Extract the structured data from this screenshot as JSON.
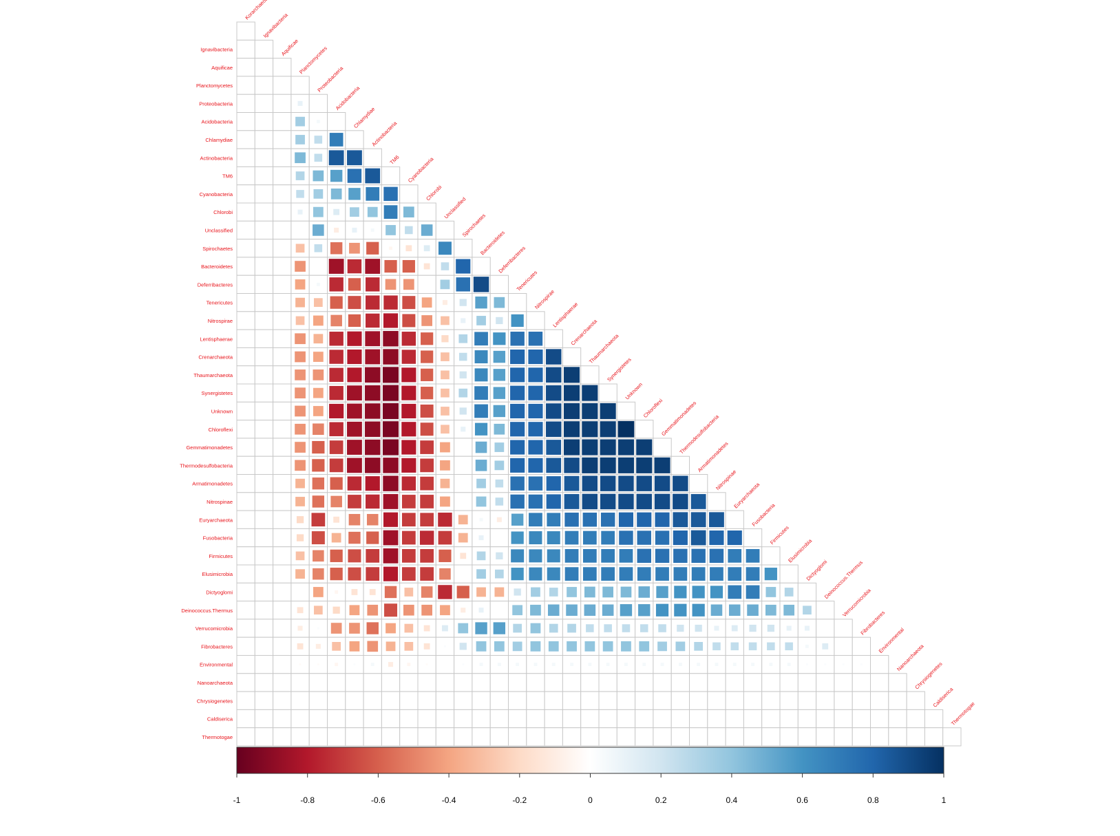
{
  "chart_data": {
    "type": "heatmap",
    "subtype": "lower-triangular correlation matrix (square glyphs, size and color scale with |r|)",
    "variables": [
      "Korarchaeota",
      "Ignavibacteria",
      "Aquificae",
      "Planctomycetes",
      "Proteobacteria",
      "Acidobacteria",
      "Chlamydiae",
      "Actinobacteria",
      "TM6",
      "Cyanobacteria",
      "Chlorobi",
      "Unclassified",
      "Spirochaetes",
      "Bacteroidetes",
      "Deferribacteres",
      "Tenericutes",
      "Nitrospirae",
      "Lentisphaerae",
      "Crenarchaeota",
      "Thaumarchaeota",
      "Synergistetes",
      "Unknown",
      "Chloroflexi",
      "Gemmatimonadetes",
      "Thermodesulfobacteria",
      "Armatimonadetes",
      "Nitrospinae",
      "Euryarchaeota",
      "Fusobacteria",
      "Firmicutes",
      "Elusimicrobia",
      "Dictyoglomi",
      "Deinococcus.Thermus",
      "Verrucomicrobia",
      "Fibrobacteres",
      "Environmental",
      "Nanoarchaeota",
      "Chrysiogenetes",
      "Caldiserica",
      "Thermotogae"
    ],
    "row_labels": [
      "Ignavibacteria",
      "Aquificae",
      "Planctomycetes",
      "Proteobacteria",
      "Acidobacteria",
      "Chlamydiae",
      "Actinobacteria",
      "TM6",
      "Cyanobacteria",
      "Chlorobi",
      "Unclassified",
      "Spirochaetes",
      "Bacteroidetes",
      "Deferribacteres",
      "Tenericutes",
      "Nitrospirae",
      "Lentisphaerae",
      "Crenarchaeota",
      "Thaumarchaeota",
      "Synergistetes",
      "Unknown",
      "Chloroflexi",
      "Gemmatimonadetes",
      "Thermodesulfobacteria",
      "Armatimonadetes",
      "Nitrospinae",
      "Euryarchaeota",
      "Fusobacteria",
      "Firmicutes",
      "Elusimicrobia",
      "Dictyoglomi",
      "Deinococcus.Thermus",
      "Verrucomicrobia",
      "Fibrobacteres",
      "Environmental",
      "Nanoarchaeota",
      "Chrysiogenetes",
      "Caldiserica",
      "Thermotogae"
    ],
    "diagonal_labels": [
      "Korarchaeota",
      "Ignavibacteria",
      "Aquificae",
      "Planctomycetes",
      "Proteobacteria",
      "Acidobacteria",
      "Chlamydiae",
      "Actinobacteria",
      "TM6",
      "Cyanobacteria",
      "Chlorobi",
      "Unclassified",
      "Spirochaetes",
      "Bacteroidetes",
      "Deferribacteres",
      "Tenericutes",
      "Nitrospirae",
      "Lentisphaerae",
      "Crenarchaeota",
      "Thaumarchaeota",
      "Synergistetes",
      "Unknown",
      "Chloroflexi",
      "Gemmatimonadetes",
      "Thermodesulfobacteria",
      "Armatimonadetes",
      "Nitrospinae",
      "Euryarchaeota",
      "Fusobacteria",
      "Firmicutes",
      "Elusimicrobia",
      "Dictyoglomi",
      "Deinococcus.Thermus",
      "Verrucomicrobia",
      "Fibrobacteres",
      "Environmental",
      "Nanoarchaeota",
      "Chrysiogenetes",
      "Caldiserica",
      "Thermotogae"
    ],
    "matrix": [
      [],
      [
        0
      ],
      [
        0,
        0
      ],
      [
        0,
        0,
        0
      ],
      [
        0,
        0,
        0,
        0.1
      ],
      [
        0,
        0,
        0,
        0.35,
        0.05
      ],
      [
        0,
        0,
        0,
        0.35,
        0.25,
        0.7
      ],
      [
        0,
        0,
        0,
        0.45,
        0.25,
        0.85,
        0.85
      ],
      [
        0,
        0,
        0,
        0.3,
        0.45,
        0.55,
        0.75,
        0.85
      ],
      [
        0,
        0,
        0,
        0.25,
        0.35,
        0.45,
        0.55,
        0.7,
        0.75
      ],
      [
        0,
        0,
        0,
        0.1,
        0.4,
        0.15,
        0.35,
        0.4,
        0.7,
        0.45
      ],
      [
        0,
        0,
        0,
        0,
        0.5,
        -0.1,
        0.1,
        0.05,
        0.4,
        0.25,
        0.5
      ],
      [
        0,
        0,
        0,
        -0.3,
        0.25,
        -0.55,
        -0.45,
        -0.6,
        -0.05,
        -0.15,
        0.15,
        0.65
      ],
      [
        0,
        0,
        0,
        -0.45,
        0,
        -0.85,
        -0.75,
        -0.85,
        -0.6,
        -0.6,
        -0.15,
        0.25,
        0.8
      ],
      [
        0,
        0,
        0,
        -0.4,
        0.05,
        -0.75,
        -0.6,
        -0.75,
        -0.45,
        -0.45,
        0,
        0.35,
        0.75,
        0.9
      ],
      [
        0,
        0,
        0,
        -0.35,
        -0.3,
        -0.6,
        -0.65,
        -0.75,
        -0.75,
        -0.65,
        -0.4,
        -0.1,
        0.2,
        0.55,
        0.45
      ],
      [
        0,
        0,
        0,
        -0.3,
        -0.4,
        -0.5,
        -0.6,
        -0.75,
        -0.8,
        -0.65,
        -0.45,
        -0.3,
        0.1,
        0.35,
        0.2,
        0.6
      ],
      [
        0,
        0,
        0,
        -0.45,
        -0.35,
        -0.75,
        -0.8,
        -0.85,
        -0.9,
        -0.75,
        -0.6,
        -0.2,
        0.3,
        0.7,
        0.6,
        0.75,
        0.75
      ],
      [
        0,
        0,
        0,
        -0.45,
        -0.4,
        -0.75,
        -0.8,
        -0.85,
        -0.9,
        -0.75,
        -0.6,
        -0.3,
        0.25,
        0.65,
        0.55,
        0.8,
        0.8,
        0.9
      ],
      [
        0,
        0,
        0,
        -0.45,
        -0.45,
        -0.75,
        -0.8,
        -0.9,
        -0.95,
        -0.8,
        -0.6,
        -0.3,
        0.2,
        0.65,
        0.55,
        0.8,
        0.8,
        0.9,
        0.95
      ],
      [
        0,
        0,
        0,
        -0.45,
        -0.4,
        -0.75,
        -0.85,
        -0.9,
        -0.95,
        -0.8,
        -0.6,
        -0.3,
        0.3,
        0.7,
        0.55,
        0.8,
        0.8,
        0.9,
        0.95,
        0.95
      ],
      [
        0,
        0,
        0,
        -0.45,
        -0.4,
        -0.8,
        -0.85,
        -0.9,
        -0.95,
        -0.8,
        -0.65,
        -0.3,
        0.2,
        0.7,
        0.55,
        0.8,
        0.8,
        0.9,
        0.95,
        0.95,
        0.95
      ],
      [
        0,
        0,
        0,
        -0.45,
        -0.5,
        -0.75,
        -0.85,
        -0.9,
        -0.95,
        -0.8,
        -0.65,
        -0.3,
        0.1,
        0.6,
        0.45,
        0.8,
        0.8,
        0.9,
        0.95,
        0.95,
        0.95,
        1
      ],
      [
        0,
        0,
        0,
        -0.45,
        -0.6,
        -0.7,
        -0.85,
        -0.9,
        -0.95,
        -0.8,
        -0.7,
        -0.4,
        0,
        0.5,
        0.35,
        0.8,
        0.8,
        0.85,
        0.95,
        0.95,
        0.95,
        0.95,
        0.95
      ],
      [
        0,
        0,
        0,
        -0.45,
        -0.6,
        -0.7,
        -0.85,
        -0.9,
        -0.9,
        -0.8,
        -0.7,
        -0.4,
        0,
        0.5,
        0.35,
        0.8,
        0.8,
        0.85,
        0.9,
        0.95,
        0.95,
        0.95,
        0.95,
        0.95
      ],
      [
        0,
        0,
        0,
        -0.35,
        -0.55,
        -0.6,
        -0.75,
        -0.8,
        -0.9,
        -0.75,
        -0.7,
        -0.35,
        0,
        0.35,
        0.25,
        0.75,
        0.75,
        0.8,
        0.85,
        0.9,
        0.9,
        0.9,
        0.9,
        0.9,
        0.9
      ],
      [
        0,
        0,
        0,
        -0.35,
        -0.55,
        -0.5,
        -0.7,
        -0.75,
        -0.85,
        -0.7,
        -0.7,
        -0.4,
        0,
        0.4,
        0.25,
        0.75,
        0.75,
        0.8,
        0.85,
        0.9,
        0.9,
        0.9,
        0.9,
        0.9,
        0.9,
        0.85
      ],
      [
        0,
        0,
        0,
        -0.2,
        -0.7,
        -0.15,
        -0.5,
        -0.5,
        -0.8,
        -0.7,
        -0.7,
        -0.75,
        -0.35,
        0.05,
        -0.1,
        0.55,
        0.7,
        0.7,
        0.75,
        0.75,
        0.75,
        0.8,
        0.8,
        0.8,
        0.85,
        0.85,
        0.85
      ],
      [
        0,
        0,
        0,
        -0.2,
        -0.65,
        -0.35,
        -0.55,
        -0.6,
        -0.85,
        -0.7,
        -0.75,
        -0.7,
        -0.35,
        0.1,
        0,
        0.6,
        0.65,
        0.65,
        0.7,
        0.7,
        0.7,
        0.75,
        0.75,
        0.75,
        0.8,
        0.85,
        0.8,
        0.8
      ],
      [
        0,
        0,
        0,
        -0.3,
        -0.5,
        -0.6,
        -0.65,
        -0.7,
        -0.85,
        -0.7,
        -0.7,
        -0.6,
        -0.15,
        0.3,
        0.2,
        0.65,
        0.65,
        0.65,
        0.7,
        0.7,
        0.7,
        0.7,
        0.75,
        0.75,
        0.75,
        0.75,
        0.75,
        0.7,
        0.7
      ],
      [
        0,
        0,
        0,
        -0.35,
        -0.5,
        -0.6,
        -0.65,
        -0.7,
        -0.8,
        -0.7,
        -0.7,
        -0.5,
        0,
        0.35,
        0.3,
        0.6,
        0.65,
        0.65,
        0.7,
        0.7,
        0.7,
        0.7,
        0.7,
        0.7,
        0.7,
        0.7,
        0.7,
        0.7,
        0.7,
        0.6
      ],
      [
        0,
        0,
        0,
        0,
        -0.4,
        -0.05,
        -0.15,
        -0.15,
        -0.55,
        -0.3,
        -0.5,
        -0.75,
        -0.6,
        -0.35,
        -0.35,
        0.2,
        0.35,
        0.3,
        0.4,
        0.45,
        0.45,
        0.45,
        0.5,
        0.55,
        0.6,
        0.6,
        0.6,
        0.7,
        0.7,
        0.4,
        0.3
      ],
      [
        0,
        0,
        0,
        -0.15,
        -0.3,
        -0.2,
        -0.4,
        -0.45,
        -0.65,
        -0.45,
        -0.45,
        -0.4,
        -0.1,
        0.1,
        0,
        0.4,
        0.45,
        0.5,
        0.5,
        0.5,
        0.5,
        0.55,
        0.55,
        0.6,
        0.6,
        0.6,
        0.5,
        0.5,
        0.5,
        0.45,
        0.45,
        0.3
      ],
      [
        0,
        0,
        0,
        -0.1,
        0.02,
        -0.45,
        -0.45,
        -0.55,
        -0.4,
        -0.3,
        -0.15,
        0.15,
        0.4,
        0.55,
        0.55,
        0.3,
        0.4,
        0.3,
        0.3,
        0.25,
        0.25,
        0.25,
        0.25,
        0.25,
        0.2,
        0.2,
        0.1,
        0.15,
        0.2,
        0.2,
        0.1,
        0.1
      ],
      [
        0,
        0,
        0,
        -0.15,
        -0.1,
        -0.3,
        -0.4,
        -0.45,
        -0.35,
        -0.3,
        -0.15,
        0.02,
        0.2,
        0.4,
        0.4,
        0.35,
        0.4,
        0.4,
        0.4,
        0.4,
        0.4,
        0.4,
        0.4,
        0.35,
        0.35,
        0.3,
        0.25,
        0.25,
        0.25,
        0.25,
        0.25,
        0.05,
        0.15
      ],
      [
        0,
        0,
        0,
        -0.02,
        -0.02,
        -0.05,
        0.02,
        0.05,
        -0.1,
        -0.05,
        -0.02,
        0,
        0.02,
        0.05,
        0.05,
        0.05,
        0.05,
        0.05,
        0.05,
        0.05,
        0.05,
        0.05,
        0.05,
        0.05,
        0.05,
        0.05,
        0.05,
        0.05,
        0.05,
        0.05,
        0.05,
        0.02,
        0.02,
        0.02,
        0.02
      ],
      [
        0,
        0,
        0,
        0,
        0,
        0,
        0,
        0,
        0,
        0,
        0,
        0,
        0,
        0,
        0,
        0,
        0,
        0,
        0,
        0,
        0,
        0,
        0,
        0,
        0,
        0,
        0,
        0,
        0,
        0,
        0,
        0,
        0,
        0,
        0,
        0
      ],
      [
        0,
        0,
        0,
        0,
        0,
        0,
        0,
        0,
        0,
        0,
        0,
        0,
        0,
        0,
        0,
        0,
        0,
        0,
        0,
        0,
        0,
        0,
        0,
        0,
        0,
        0,
        0,
        0,
        0,
        0,
        0,
        0,
        0,
        0,
        0,
        0,
        0
      ],
      [
        0,
        0,
        0,
        0,
        0,
        0,
        0,
        0,
        0,
        0,
        0,
        0,
        0,
        0,
        0,
        0,
        0,
        0,
        0,
        0,
        0,
        0,
        0,
        0,
        0,
        0,
        0,
        0,
        0,
        0,
        0,
        0,
        0,
        0,
        0,
        0,
        0,
        0
      ],
      [
        0,
        0,
        0,
        0,
        0,
        0,
        0,
        0,
        0,
        0,
        0,
        0,
        0,
        0,
        0,
        0,
        0,
        0,
        0,
        0,
        0,
        0,
        0,
        0,
        0,
        0,
        0,
        0,
        0,
        0,
        0,
        0,
        0,
        0,
        0,
        0,
        0,
        0,
        0
      ]
    ],
    "colorbar": {
      "min": -1,
      "max": 1,
      "ticks": [
        -1,
        -0.8,
        -0.6,
        -0.4,
        -0.2,
        0,
        0.2,
        0.4,
        0.6,
        0.8,
        1
      ],
      "tick_labels": [
        "-1",
        "-0.8",
        "-0.6",
        "-0.4",
        "-0.2",
        "0",
        "0.2",
        "0.4",
        "0.6",
        "0.8",
        "1"
      ],
      "colors": [
        "#67001f",
        "#b2182b",
        "#d6604d",
        "#f4a582",
        "#fddbc7",
        "#ffffff",
        "#d1e5f0",
        "#92c5de",
        "#4393c3",
        "#2166ac",
        "#053061"
      ],
      "placement": "bottom"
    },
    "label_color": "#e8131a",
    "grid": true
  }
}
